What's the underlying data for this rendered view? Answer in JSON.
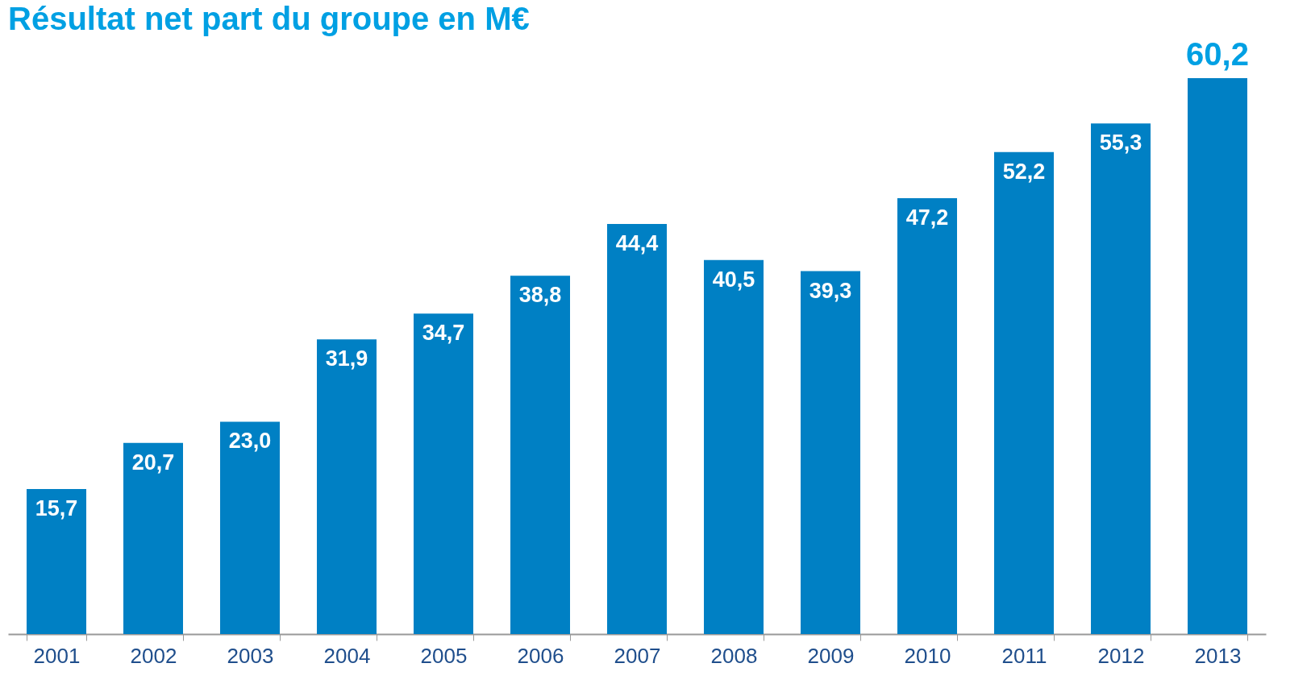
{
  "chart_data": {
    "type": "bar",
    "title": "Résultat net part du groupe en M€",
    "categories": [
      "2001",
      "2002",
      "2003",
      "2004",
      "2005",
      "2006",
      "2007",
      "2008",
      "2009",
      "2010",
      "2011",
      "2012",
      "2013"
    ],
    "values": [
      15.7,
      20.7,
      23.0,
      31.9,
      34.7,
      38.8,
      44.4,
      40.5,
      39.3,
      47.2,
      52.2,
      55.3,
      60.2
    ],
    "value_labels": [
      "15,7",
      "20,7",
      "23,0",
      "31,9",
      "34,7",
      "38,8",
      "44,4",
      "40,5",
      "39,3",
      "47,2",
      "52,2",
      "55,3",
      "60,2"
    ],
    "color": "#0080c4",
    "grid": false
  }
}
